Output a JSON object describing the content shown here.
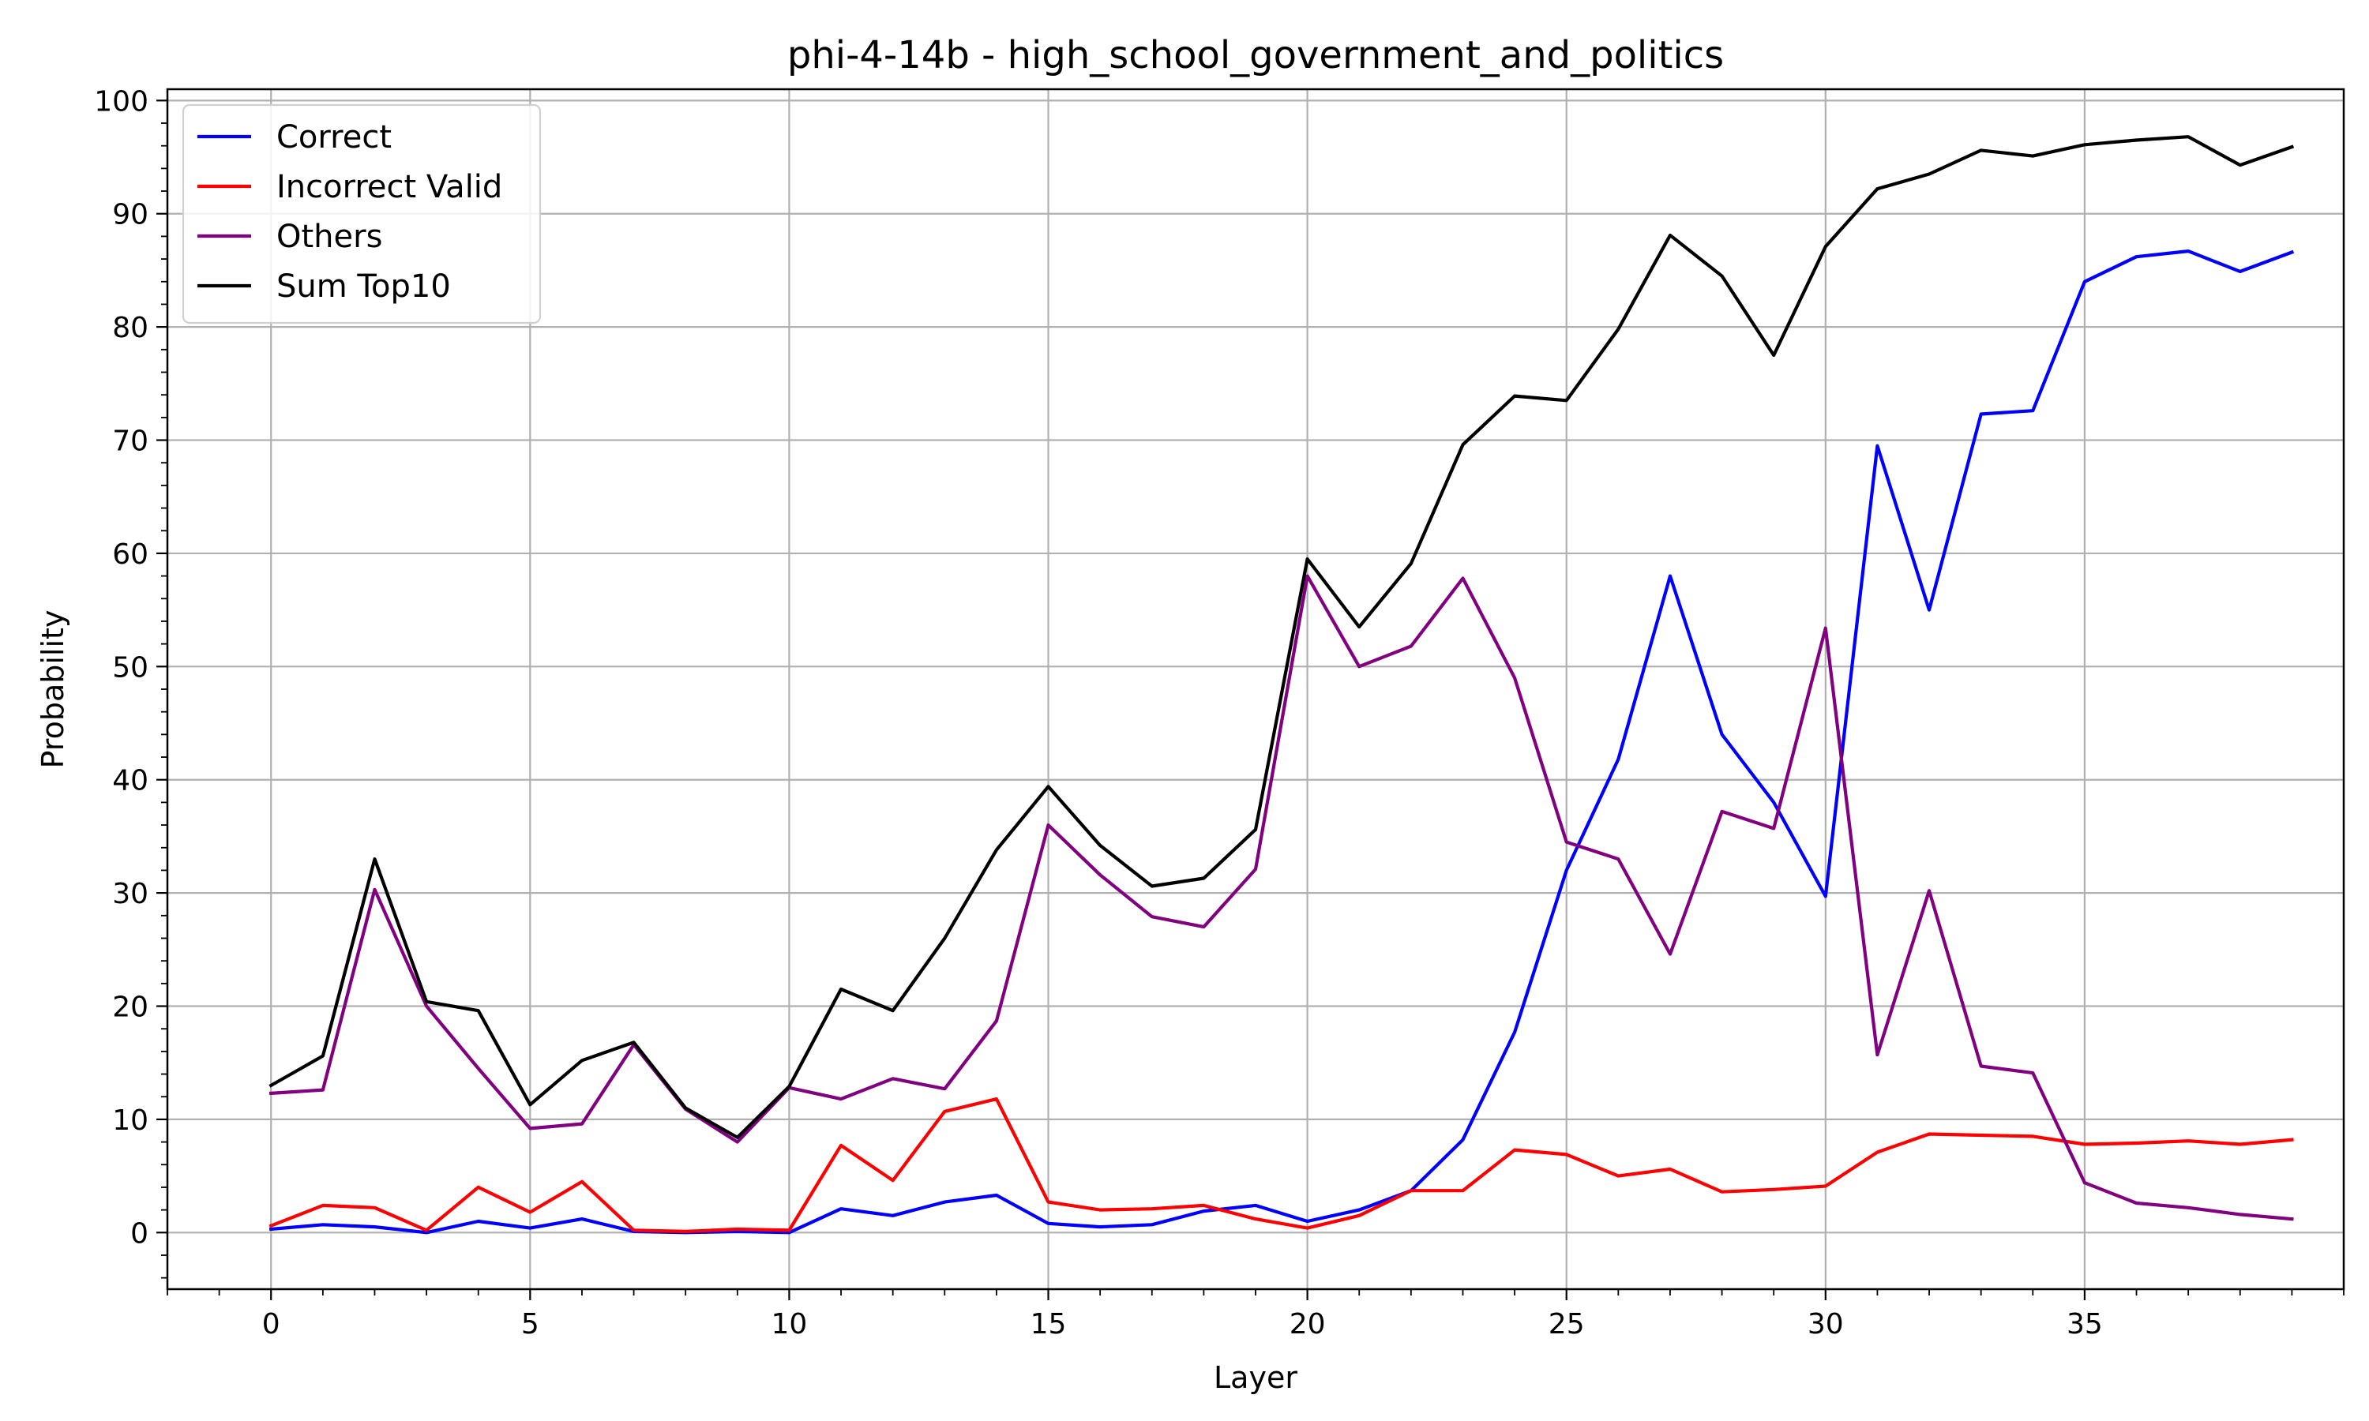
{
  "chart_data": {
    "type": "line",
    "title": "phi-4-14b - high_school_government_and_politics",
    "xlabel": "Layer",
    "ylabel": "Probability",
    "xlim": [
      -2,
      40
    ],
    "ylim": [
      -5,
      101
    ],
    "xticks": [
      0,
      5,
      10,
      15,
      20,
      25,
      30,
      35
    ],
    "yticks": [
      0,
      10,
      20,
      30,
      40,
      50,
      60,
      70,
      80,
      90,
      100
    ],
    "grid": true,
    "legend": "top-left",
    "x": [
      0,
      1,
      2,
      3,
      4,
      5,
      6,
      7,
      8,
      9,
      10,
      11,
      12,
      13,
      14,
      15,
      16,
      17,
      18,
      19,
      20,
      21,
      22,
      23,
      24,
      25,
      26,
      27,
      28,
      29,
      30,
      31,
      32,
      33,
      34,
      35,
      36,
      37,
      38,
      39
    ],
    "series": [
      {
        "name": "Correct",
        "color": "#0000ff",
        "values": [
          0.3,
          0.7,
          0.5,
          0.0,
          1.0,
          0.4,
          1.2,
          0.1,
          0.0,
          0.1,
          0.0,
          2.1,
          1.5,
          2.7,
          3.3,
          0.8,
          0.5,
          0.7,
          1.9,
          2.4,
          1.0,
          2.0,
          3.7,
          8.2,
          17.7,
          32.0,
          41.8,
          58.0,
          44.0,
          38.0,
          29.7,
          69.5,
          55.0,
          72.3,
          72.6,
          84.0,
          86.2,
          86.7,
          84.9,
          86.6
        ]
      },
      {
        "name": "Incorrect Valid",
        "color": "#ff0000",
        "values": [
          0.6,
          2.4,
          2.2,
          0.2,
          4.0,
          1.8,
          4.5,
          0.2,
          0.1,
          0.3,
          0.2,
          7.7,
          4.6,
          10.7,
          11.8,
          2.7,
          2.0,
          2.1,
          2.4,
          1.2,
          0.4,
          1.5,
          3.7,
          3.7,
          7.3,
          6.9,
          5.0,
          5.6,
          3.6,
          3.8,
          4.1,
          7.1,
          8.7,
          8.6,
          8.5,
          7.8,
          7.9,
          8.1,
          7.8,
          8.2
        ]
      },
      {
        "name": "Others",
        "color": "#800080",
        "values": [
          12.3,
          12.6,
          30.3,
          20.0,
          14.5,
          9.2,
          9.6,
          16.6,
          10.9,
          8.0,
          12.8,
          11.8,
          13.6,
          12.7,
          18.7,
          36.0,
          31.6,
          27.9,
          27.0,
          32.1,
          58.0,
          50.0,
          51.8,
          57.8,
          49.0,
          34.5,
          33.0,
          24.6,
          37.2,
          35.7,
          53.4,
          15.7,
          30.2,
          14.7,
          14.1,
          4.4,
          2.6,
          2.2,
          1.6,
          1.2
        ]
      },
      {
        "name": "Sum Top10",
        "color": "#000000",
        "values": [
          13.0,
          15.6,
          33.0,
          20.4,
          19.6,
          11.3,
          15.2,
          16.8,
          11.0,
          8.4,
          12.9,
          21.5,
          19.6,
          26.0,
          33.8,
          39.4,
          34.2,
          30.6,
          31.3,
          35.6,
          59.5,
          53.5,
          59.1,
          69.6,
          73.9,
          73.5,
          79.8,
          88.1,
          84.5,
          77.5,
          87.1,
          92.2,
          93.5,
          95.6,
          95.1,
          96.1,
          96.5,
          96.8,
          94.3,
          95.9
        ]
      }
    ]
  }
}
